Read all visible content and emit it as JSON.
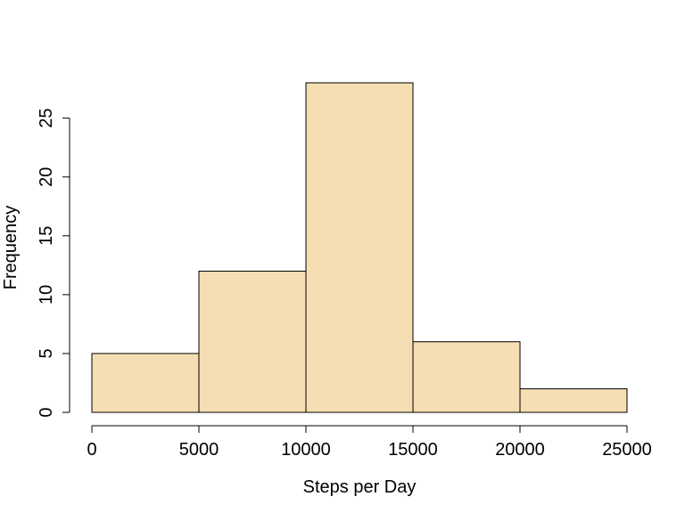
{
  "chart_data": {
    "type": "bar",
    "title": "",
    "xlabel": "Steps per Day",
    "ylabel": "Frequency",
    "bins": [
      {
        "x0": 0,
        "x1": 5000,
        "count": 5
      },
      {
        "x0": 5000,
        "x1": 10000,
        "count": 12
      },
      {
        "x0": 10000,
        "x1": 15000,
        "count": 28
      },
      {
        "x0": 15000,
        "x1": 20000,
        "count": 6
      },
      {
        "x0": 20000,
        "x1": 25000,
        "count": 2
      }
    ],
    "x_ticks": [
      0,
      5000,
      10000,
      15000,
      20000,
      25000
    ],
    "y_ticks": [
      0,
      5,
      10,
      15,
      20,
      25
    ],
    "xlim": [
      0,
      25000
    ],
    "ylim": [
      0,
      28
    ],
    "bar_color": "#F5DEB3",
    "edge_color": "#000000",
    "grid": false
  }
}
